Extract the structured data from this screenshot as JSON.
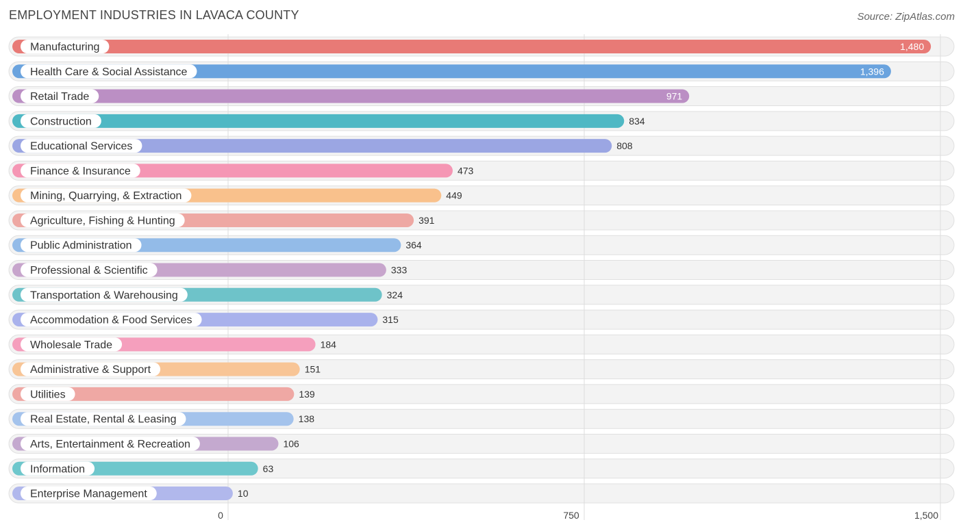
{
  "title": "EMPLOYMENT INDUSTRIES IN LAVACA COUNTY",
  "source": "Source: ZipAtlas.com",
  "chart_data": {
    "type": "bar",
    "orientation": "horizontal",
    "title": "EMPLOYMENT INDUSTRIES IN LAVACA COUNTY",
    "xlabel": "",
    "ylabel": "",
    "xlim": [
      0,
      1500
    ],
    "ticks": [
      0,
      750,
      1500
    ],
    "tick_labels": [
      "0",
      "750",
      "1,500"
    ],
    "categories": [
      "Manufacturing",
      "Health Care & Social Assistance",
      "Retail Trade",
      "Construction",
      "Educational Services",
      "Finance & Insurance",
      "Mining, Quarrying, & Extraction",
      "Agriculture, Fishing & Hunting",
      "Public Administration",
      "Professional & Scientific",
      "Transportation & Warehousing",
      "Accommodation & Food Services",
      "Wholesale Trade",
      "Administrative & Support",
      "Utilities",
      "Real Estate, Rental & Leasing",
      "Arts, Entertainment & Recreation",
      "Information",
      "Enterprise Management"
    ],
    "values": [
      1480,
      1396,
      971,
      834,
      808,
      473,
      449,
      391,
      364,
      333,
      324,
      315,
      184,
      151,
      139,
      138,
      106,
      63,
      10
    ],
    "value_labels": [
      "1,480",
      "1,396",
      "971",
      "834",
      "808",
      "473",
      "449",
      "391",
      "364",
      "333",
      "324",
      "315",
      "184",
      "151",
      "139",
      "138",
      "106",
      "63",
      "10"
    ],
    "colors": [
      "#e87a76",
      "#6aa3de",
      "#bb8fc4",
      "#4fb8c4",
      "#9ba6e3",
      "#f596b4",
      "#f9c18c",
      "#eea8a3",
      "#93bbe8",
      "#c7a5cc",
      "#6ec3c9",
      "#a9b2ec",
      "#f59fbd",
      "#f8c596",
      "#efa8a4",
      "#a4c3ec",
      "#c4a9cf",
      "#6ec7cc",
      "#b1b8ec"
    ],
    "grid": true
  }
}
